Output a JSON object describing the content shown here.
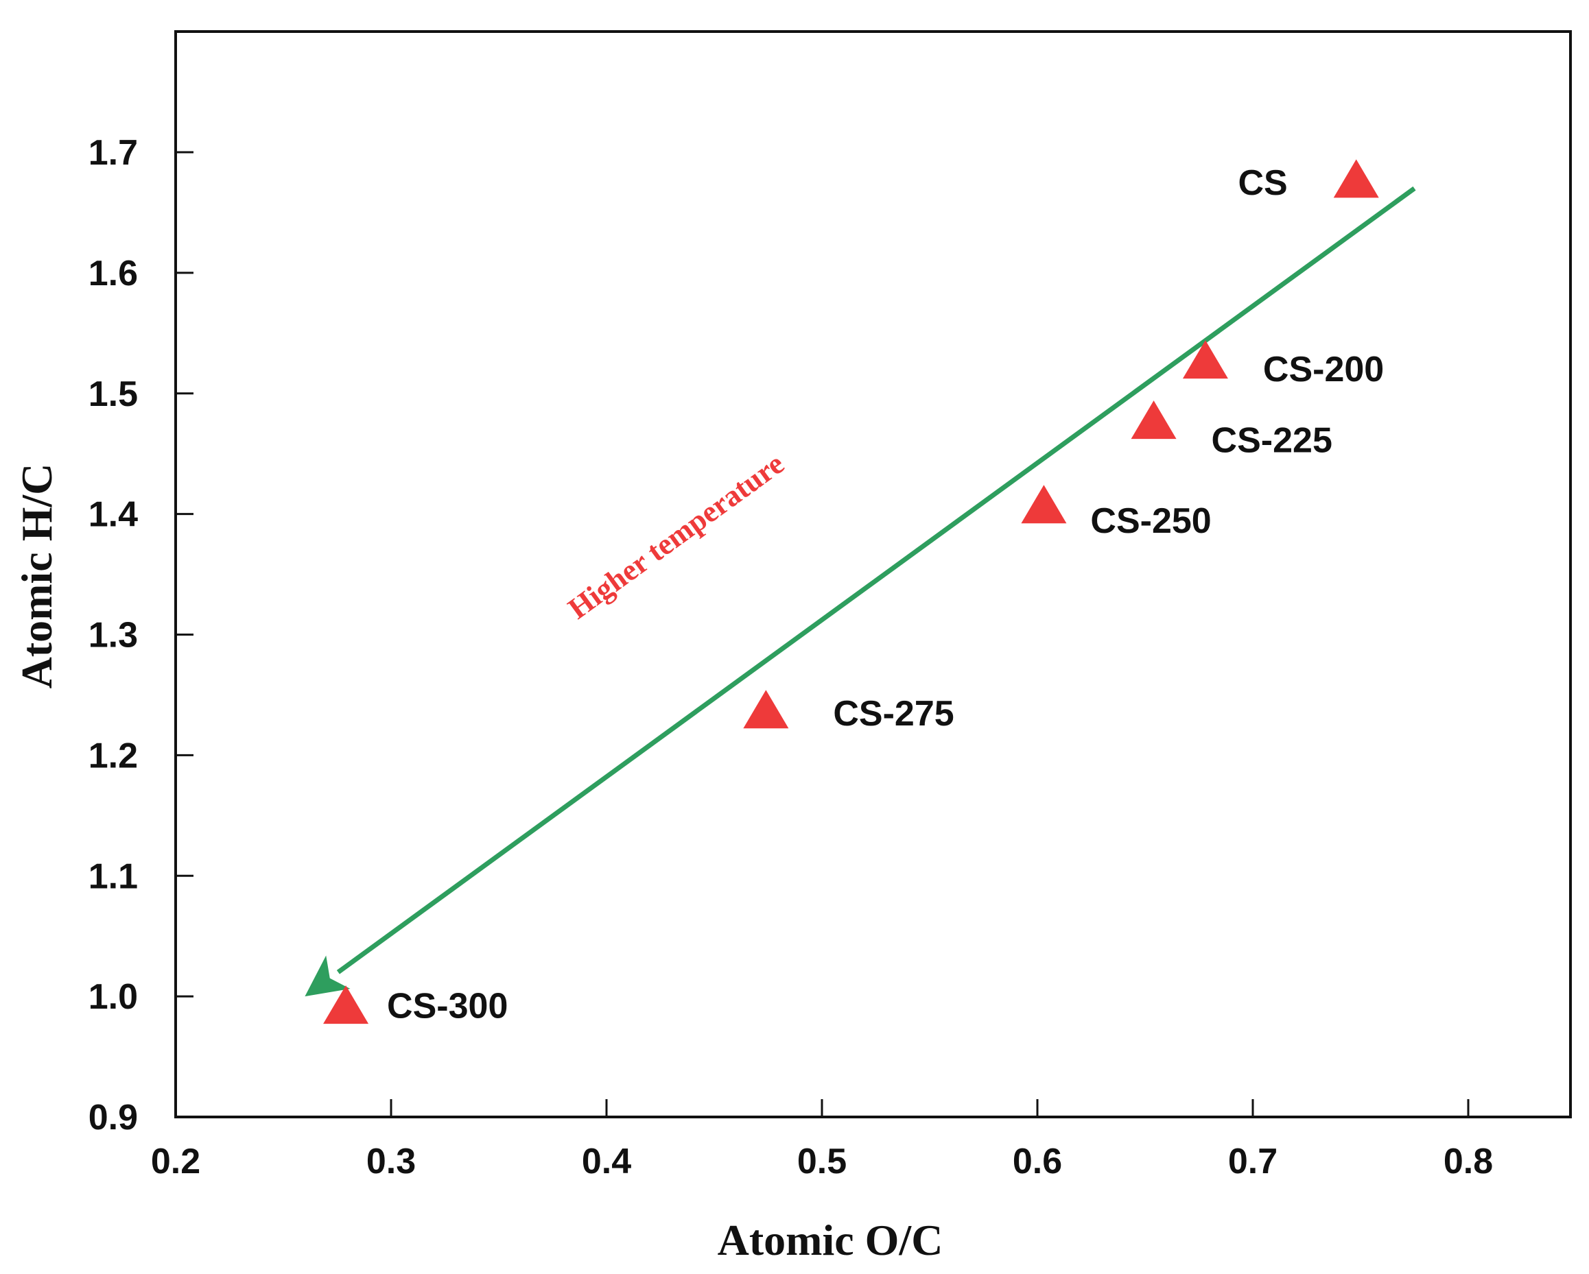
{
  "chart_data": {
    "type": "scatter",
    "xlabel": "Atomic O/C",
    "ylabel": "Atomic H/C",
    "xlim": [
      0.2,
      0.85
    ],
    "ylim": [
      0.9,
      1.8
    ],
    "xticks": [
      0.2,
      0.3,
      0.4,
      0.5,
      0.6,
      0.7,
      0.8
    ],
    "yticks": [
      0.9,
      1.0,
      1.1,
      1.2,
      1.3,
      1.4,
      1.5,
      1.6,
      1.7
    ],
    "xtick_labels": [
      "0.2",
      "0.3",
      "0.4",
      "0.5",
      "0.6",
      "0.7",
      "0.8"
    ],
    "ytick_labels": [
      "0.9",
      "1.0",
      "1.1",
      "1.2",
      "1.3",
      "1.4",
      "1.5",
      "1.6",
      "1.7"
    ],
    "grid": false,
    "legend": "none",
    "marker": "triangle",
    "marker_color": "#ee3a3a",
    "points": [
      {
        "label": "CS",
        "x": 0.748,
        "y": 1.675
      },
      {
        "label": "CS-200",
        "x": 0.678,
        "y": 1.525
      },
      {
        "label": "CS-225",
        "x": 0.654,
        "y": 1.475
      },
      {
        "label": "CS-250",
        "x": 0.603,
        "y": 1.405
      },
      {
        "label": "CS-275",
        "x": 0.474,
        "y": 1.235
      },
      {
        "label": "CS-300",
        "x": 0.279,
        "y": 0.99
      }
    ],
    "trend_arrow": {
      "from": {
        "x": 0.775,
        "y": 1.67
      },
      "to": {
        "x": 0.26,
        "y": 1.0
      },
      "color": "#2e9e5e",
      "label": "Higher temperature",
      "label_color": "#ee3a3a"
    }
  }
}
